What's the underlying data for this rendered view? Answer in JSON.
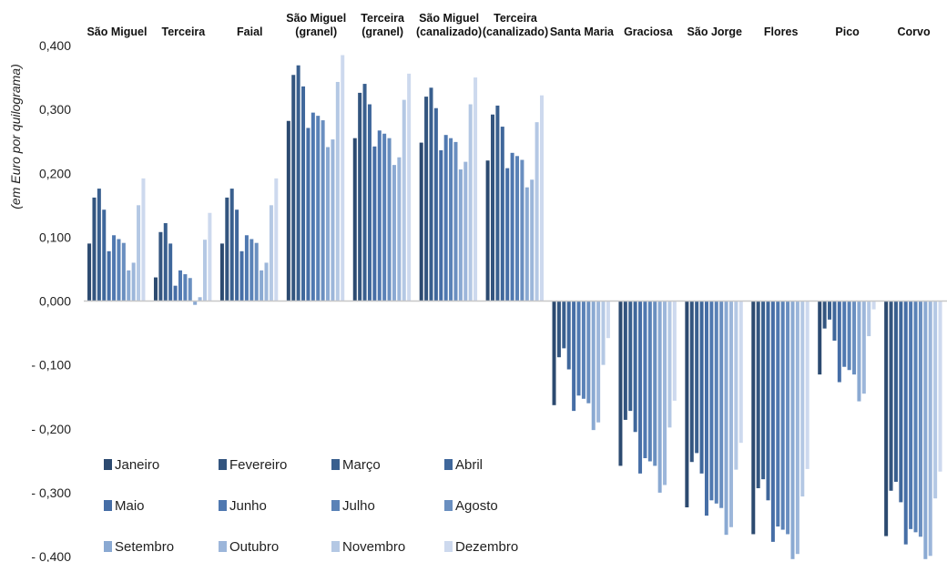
{
  "chart_data": {
    "type": "bar",
    "ylabel": "(em Euro por quilograma)",
    "ylim": [
      -0.4,
      0.4
    ],
    "yticks": [
      "0,400",
      "0,300",
      "0,200",
      "0,100",
      "0,000",
      "- 0,100",
      "- 0,200",
      "- 0,300",
      "- 0,400"
    ],
    "ytick_values": [
      0.4,
      0.3,
      0.2,
      0.1,
      0.0,
      -0.1,
      -0.2,
      -0.3,
      -0.4
    ],
    "categories": [
      [
        "São Miguel"
      ],
      [
        "Terceira"
      ],
      [
        "Faial"
      ],
      [
        "São Miguel",
        "(granel)"
      ],
      [
        "Terceira",
        "(granel)"
      ],
      [
        "São Miguel",
        "(canalizado)"
      ],
      [
        "Terceira",
        "(canalizado)"
      ],
      [
        "Santa Maria"
      ],
      [
        "Graciosa"
      ],
      [
        "São Jorge"
      ],
      [
        "Flores"
      ],
      [
        "Pico"
      ],
      [
        "Corvo"
      ]
    ],
    "legend": {
      "position": "bottom-left"
    },
    "series": [
      {
        "name": "Janeiro",
        "color": "#2c4a70",
        "values": [
          0.09,
          0.037,
          0.09,
          0.282,
          0.255,
          0.248,
          0.22,
          -0.163,
          -0.258,
          -0.323,
          -0.365,
          -0.115,
          -0.368
        ]
      },
      {
        "name": "Fevereiro",
        "color": "#33557f",
        "values": [
          0.162,
          0.108,
          0.162,
          0.354,
          0.326,
          0.32,
          0.292,
          -0.088,
          -0.186,
          -0.252,
          -0.293,
          -0.043,
          -0.297
        ]
      },
      {
        "name": "Março",
        "color": "#395f8e",
        "values": [
          0.176,
          0.122,
          0.176,
          0.369,
          0.34,
          0.334,
          0.306,
          -0.074,
          -0.172,
          -0.238,
          -0.279,
          -0.029,
          -0.283
        ]
      },
      {
        "name": "Abril",
        "color": "#3f679b",
        "values": [
          0.143,
          0.09,
          0.143,
          0.336,
          0.308,
          0.302,
          0.273,
          -0.107,
          -0.205,
          -0.27,
          -0.312,
          -0.062,
          -0.315
        ]
      },
      {
        "name": "Maio",
        "color": "#466ea6",
        "values": [
          0.078,
          0.024,
          0.078,
          0.271,
          0.242,
          0.236,
          0.208,
          -0.172,
          -0.27,
          -0.336,
          -0.377,
          -0.127,
          -0.381
        ]
      },
      {
        "name": "Junho",
        "color": "#4f78b0",
        "values": [
          0.103,
          0.048,
          0.103,
          0.295,
          0.267,
          0.26,
          0.232,
          -0.148,
          -0.246,
          -0.312,
          -0.353,
          -0.103,
          -0.357
        ]
      },
      {
        "name": "Julho",
        "color": "#5a82b7",
        "values": [
          0.097,
          0.042,
          0.097,
          0.29,
          0.262,
          0.255,
          0.227,
          -0.153,
          -0.251,
          -0.317,
          -0.358,
          -0.108,
          -0.362
        ]
      },
      {
        "name": "Agosto",
        "color": "#6a8fc0",
        "values": [
          0.091,
          0.036,
          0.091,
          0.283,
          0.255,
          0.249,
          0.221,
          -0.16,
          -0.258,
          -0.324,
          -0.365,
          -0.115,
          -0.369
        ]
      },
      {
        "name": "Setembro",
        "color": "#8aa9d2",
        "values": [
          0.048,
          -0.006,
          0.048,
          0.241,
          0.213,
          0.206,
          0.178,
          -0.202,
          -0.3,
          -0.366,
          -0.404,
          -0.157,
          -0.404
        ]
      },
      {
        "name": "Outubro",
        "color": "#9cb6da",
        "values": [
          0.06,
          0.006,
          0.06,
          0.253,
          0.225,
          0.218,
          0.19,
          -0.19,
          -0.288,
          -0.354,
          -0.396,
          -0.145,
          -0.399
        ]
      },
      {
        "name": "Novembro",
        "color": "#b4c8e4",
        "values": [
          0.15,
          0.096,
          0.15,
          0.343,
          0.315,
          0.308,
          0.28,
          -0.1,
          -0.198,
          -0.264,
          -0.306,
          -0.055,
          -0.309
        ]
      },
      {
        "name": "Dezembro",
        "color": "#cdd9ee",
        "values": [
          0.192,
          0.138,
          0.192,
          0.385,
          0.356,
          0.35,
          0.322,
          -0.058,
          -0.156,
          -0.222,
          -0.263,
          -0.013,
          -0.267
        ]
      }
    ]
  }
}
